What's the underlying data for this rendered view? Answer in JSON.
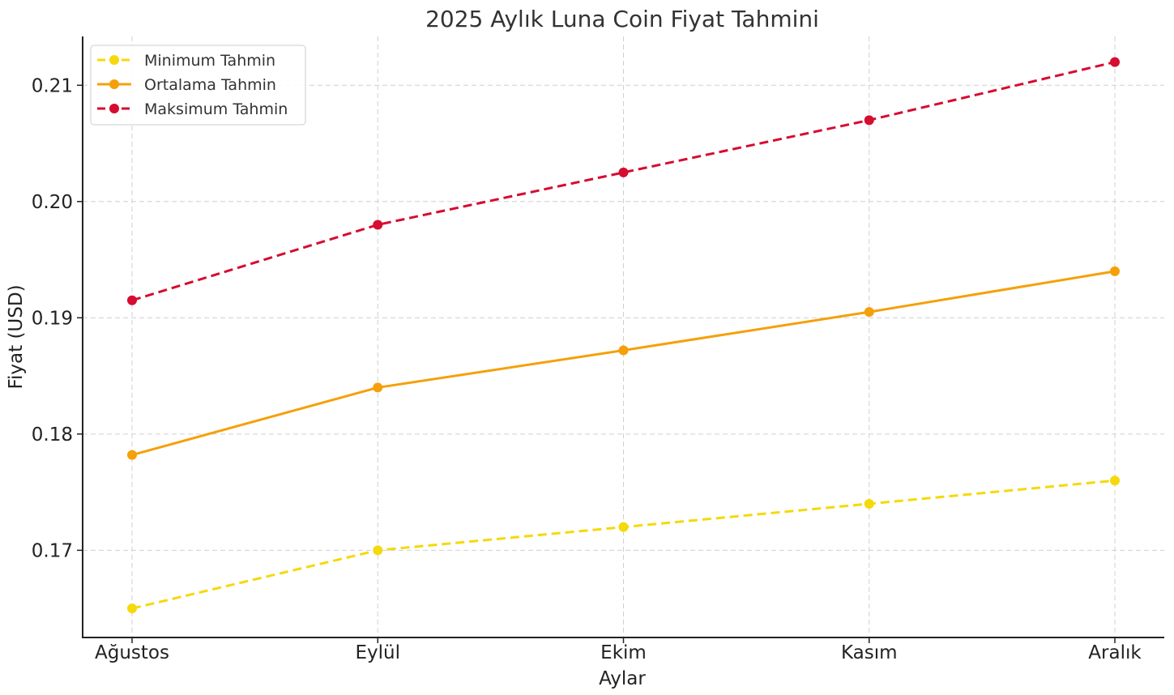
{
  "chart_data": {
    "type": "line",
    "title": "2025 Aylık Luna Coin Fiyat Tahmini",
    "xlabel": "Aylar",
    "ylabel": "Fiyat (USD)",
    "categories": [
      "Ağustos",
      "Eylül",
      "Ekim",
      "Kasım",
      "Aralık"
    ],
    "ylim": [
      0.1625,
      0.2142
    ],
    "yticks": [
      "0.17",
      "0.18",
      "0.19",
      "0.20",
      "0.21"
    ],
    "grid": true,
    "legend_position": "top-left",
    "series": [
      {
        "name": "Minimum Tahmin",
        "values": [
          0.165,
          0.17,
          0.172,
          0.174,
          0.176
        ],
        "color": "#f5d90a",
        "dashed": true
      },
      {
        "name": "Ortalama Tahmin",
        "values": [
          0.1782,
          0.184,
          0.1872,
          0.1905,
          0.194
        ],
        "color": "#f5a00a",
        "dashed": false
      },
      {
        "name": "Maksimum Tahmin",
        "values": [
          0.1915,
          0.198,
          0.2025,
          0.207,
          0.212
        ],
        "color": "#d60c30",
        "dashed": true
      }
    ]
  }
}
